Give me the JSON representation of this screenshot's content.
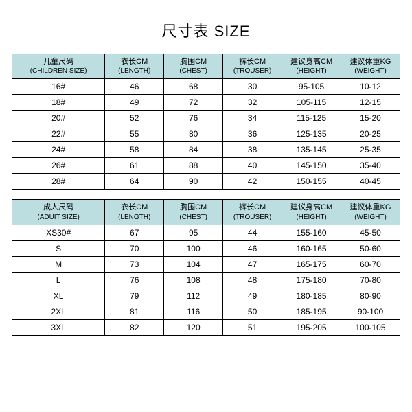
{
  "title": "尺寸表 SIZE",
  "header_bg": "#bcdee0",
  "row_bg": "#ffffff",
  "headers": {
    "size_child": {
      "cn": "儿童尺码",
      "en": "(CHILDREN SIZE)"
    },
    "size_adult": {
      "cn": "成人尺码",
      "en": "(ADUIT SIZE)"
    },
    "length": {
      "cn": "衣长CM",
      "en": "(LENGTH)"
    },
    "chest": {
      "cn": "胸围CM",
      "en": "(CHEST)"
    },
    "trouser": {
      "cn": "裤长CM",
      "en": "(TROUSER)"
    },
    "height": {
      "cn": "建议身高CM",
      "en": "(HEIGHT)"
    },
    "weight": {
      "cn": "建议体重KG",
      "en": "(WEIGHT)"
    }
  },
  "children_rows": [
    {
      "size": "16#",
      "length": "46",
      "chest": "68",
      "trouser": "30",
      "height": "95-105",
      "weight": "10-12"
    },
    {
      "size": "18#",
      "length": "49",
      "chest": "72",
      "trouser": "32",
      "height": "105-115",
      "weight": "12-15"
    },
    {
      "size": "20#",
      "length": "52",
      "chest": "76",
      "trouser": "34",
      "height": "115-125",
      "weight": "15-20"
    },
    {
      "size": "22#",
      "length": "55",
      "chest": "80",
      "trouser": "36",
      "height": "125-135",
      "weight": "20-25"
    },
    {
      "size": "24#",
      "length": "58",
      "chest": "84",
      "trouser": "38",
      "height": "135-145",
      "weight": "25-35"
    },
    {
      "size": "26#",
      "length": "61",
      "chest": "88",
      "trouser": "40",
      "height": "145-150",
      "weight": "35-40"
    },
    {
      "size": "28#",
      "length": "64",
      "chest": "90",
      "trouser": "42",
      "height": "150-155",
      "weight": "40-45"
    }
  ],
  "adult_rows": [
    {
      "size": "XS30#",
      "length": "67",
      "chest": "95",
      "trouser": "44",
      "height": "155-160",
      "weight": "45-50"
    },
    {
      "size": "S",
      "length": "70",
      "chest": "100",
      "trouser": "46",
      "height": "160-165",
      "weight": "50-60"
    },
    {
      "size": "M",
      "length": "73",
      "chest": "104",
      "trouser": "47",
      "height": "165-175",
      "weight": "60-70"
    },
    {
      "size": "L",
      "length": "76",
      "chest": "108",
      "trouser": "48",
      "height": "175-180",
      "weight": "70-80"
    },
    {
      "size": "XL",
      "length": "79",
      "chest": "112",
      "trouser": "49",
      "height": "180-185",
      "weight": "80-90"
    },
    {
      "size": "2XL",
      "length": "81",
      "chest": "116",
      "trouser": "50",
      "height": "185-195",
      "weight": "90-100"
    },
    {
      "size": "3XL",
      "length": "82",
      "chest": "120",
      "trouser": "51",
      "height": "195-205",
      "weight": "100-105"
    }
  ]
}
